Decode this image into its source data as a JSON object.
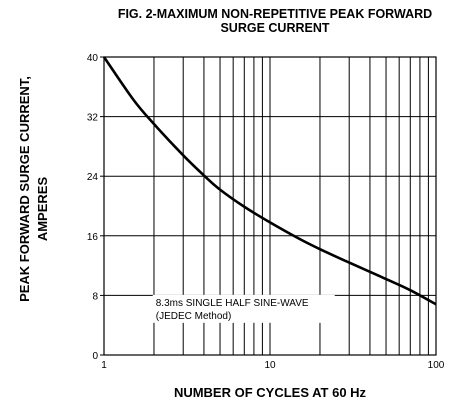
{
  "chart_data": {
    "type": "line",
    "title_line1": "FIG. 2-MAXIMUM NON-REPETITIVE PEAK FORWARD",
    "title_line2": "SURGE CURRENT",
    "ylabel_line1": "PEAK  FORWARD SURGE CURRENT,",
    "ylabel_line2": "AMPERES",
    "xlabel": "NUMBER OF CYCLES AT 60 Hz",
    "x_scale": "log",
    "xlim": [
      1,
      100
    ],
    "ylim": [
      0,
      40
    ],
    "x_ticks": [
      1,
      10,
      100
    ],
    "y_ticks": [
      0,
      8,
      16,
      24,
      32,
      40
    ],
    "grid": true,
    "annotation_line1": "8.3ms SINGLE HALF SINE-WAVE",
    "annotation_line2": "(JEDEC Method)",
    "series": [
      {
        "color": "#000000",
        "x": [
          1,
          1.5,
          2,
          3,
          4,
          5,
          7,
          10,
          15,
          20,
          30,
          50,
          70,
          100
        ],
        "y": [
          40,
          34.3,
          31,
          26.8,
          24.1,
          22.2,
          19.9,
          17.8,
          15.6,
          14.2,
          12.4,
          10.2,
          8.7,
          6.8
        ]
      }
    ]
  }
}
